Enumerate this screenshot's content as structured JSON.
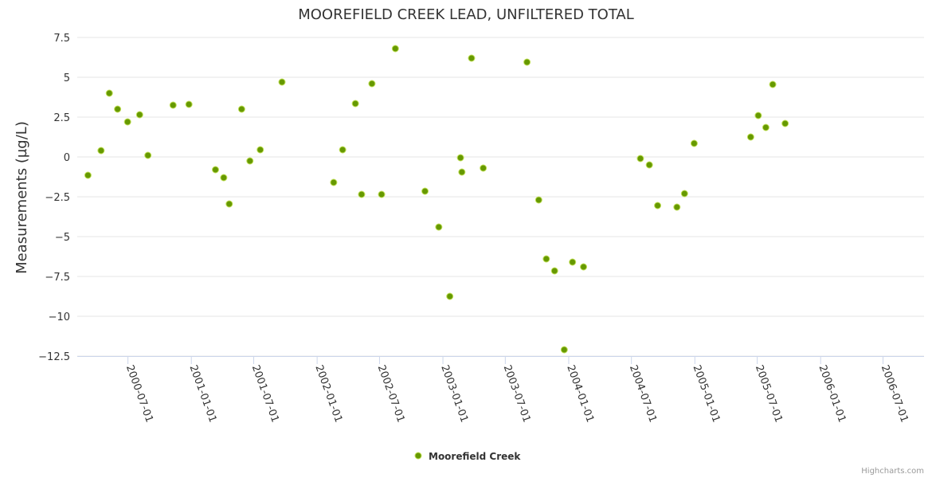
{
  "credits": "Highcharts.com",
  "chart_data": {
    "type": "scatter",
    "title": "MOOREFIELD CREEK LEAD, UNFILTERED TOTAL",
    "ylabel": "Measurements (µg/L)",
    "xlabel": "",
    "ylim": [
      -12.5,
      7.5
    ],
    "xlim": [
      "2000-02-05",
      "2006-10-28"
    ],
    "yticks": [
      7.5,
      5,
      2.5,
      0,
      -2.5,
      -5,
      -7.5,
      -10,
      -12.5
    ],
    "ytick_labels": [
      "7.5",
      "5",
      "2.5",
      "0",
      "−2.5",
      "−5",
      "−7.5",
      "−10",
      "−12.5"
    ],
    "xticks": [
      "2000-07-01",
      "2001-01-01",
      "2001-07-01",
      "2002-01-01",
      "2002-07-01",
      "2003-01-01",
      "2003-07-01",
      "2004-01-01",
      "2004-07-01",
      "2005-01-01",
      "2005-07-01",
      "2006-01-01",
      "2006-07-01"
    ],
    "grid": "horizontal",
    "legend_position": "bottom-center",
    "colors": {
      "marker_fill": "#669900",
      "marker_stroke": "#c2e05a",
      "grid": "#e6e6e6",
      "axis": "#ccd6eb",
      "text": "#333333"
    },
    "series": [
      {
        "name": "Moorefield Creek",
        "points": [
          {
            "x": "2000-03-07",
            "y": -1.15
          },
          {
            "x": "2000-04-14",
            "y": 0.4
          },
          {
            "x": "2000-05-08",
            "y": 4.0
          },
          {
            "x": "2000-06-01",
            "y": 3.0
          },
          {
            "x": "2000-06-30",
            "y": 2.2
          },
          {
            "x": "2000-08-04",
            "y": 2.65
          },
          {
            "x": "2000-08-28",
            "y": 0.1
          },
          {
            "x": "2000-11-09",
            "y": 3.25
          },
          {
            "x": "2000-12-25",
            "y": 3.3
          },
          {
            "x": "2001-03-12",
            "y": -0.8
          },
          {
            "x": "2001-04-05",
            "y": -1.3
          },
          {
            "x": "2001-04-21",
            "y": -2.95
          },
          {
            "x": "2001-05-27",
            "y": 3.0
          },
          {
            "x": "2001-06-20",
            "y": -0.25
          },
          {
            "x": "2001-07-20",
            "y": 0.45
          },
          {
            "x": "2001-09-21",
            "y": 4.7
          },
          {
            "x": "2002-02-18",
            "y": -1.6
          },
          {
            "x": "2002-03-16",
            "y": 0.45
          },
          {
            "x": "2002-04-22",
            "y": 3.35
          },
          {
            "x": "2002-05-10",
            "y": -2.35
          },
          {
            "x": "2002-06-09",
            "y": 4.6
          },
          {
            "x": "2002-07-07",
            "y": -2.35
          },
          {
            "x": "2002-08-16",
            "y": 6.8
          },
          {
            "x": "2002-11-10",
            "y": -2.15
          },
          {
            "x": "2002-12-20",
            "y": -4.4
          },
          {
            "x": "2003-01-21",
            "y": -8.75
          },
          {
            "x": "2003-02-21",
            "y": -0.05
          },
          {
            "x": "2003-02-25",
            "y": -0.95
          },
          {
            "x": "2003-03-25",
            "y": 6.2
          },
          {
            "x": "2003-04-28",
            "y": -0.7
          },
          {
            "x": "2003-09-02",
            "y": 5.95
          },
          {
            "x": "2003-10-06",
            "y": -2.7
          },
          {
            "x": "2003-10-28",
            "y": -6.4
          },
          {
            "x": "2003-11-21",
            "y": -7.15
          },
          {
            "x": "2003-12-19",
            "y": -12.1
          },
          {
            "x": "2004-01-12",
            "y": -6.6
          },
          {
            "x": "2004-02-13",
            "y": -6.9
          },
          {
            "x": "2004-07-27",
            "y": -0.1
          },
          {
            "x": "2004-08-22",
            "y": -0.5
          },
          {
            "x": "2004-09-15",
            "y": -3.05
          },
          {
            "x": "2004-11-10",
            "y": -3.15
          },
          {
            "x": "2004-12-02",
            "y": -2.3
          },
          {
            "x": "2004-12-30",
            "y": 0.85
          },
          {
            "x": "2005-06-12",
            "y": 1.25
          },
          {
            "x": "2005-07-04",
            "y": 2.6
          },
          {
            "x": "2005-07-26",
            "y": 1.85
          },
          {
            "x": "2005-08-15",
            "y": 4.55
          },
          {
            "x": "2005-09-20",
            "y": 2.1
          }
        ]
      }
    ]
  }
}
